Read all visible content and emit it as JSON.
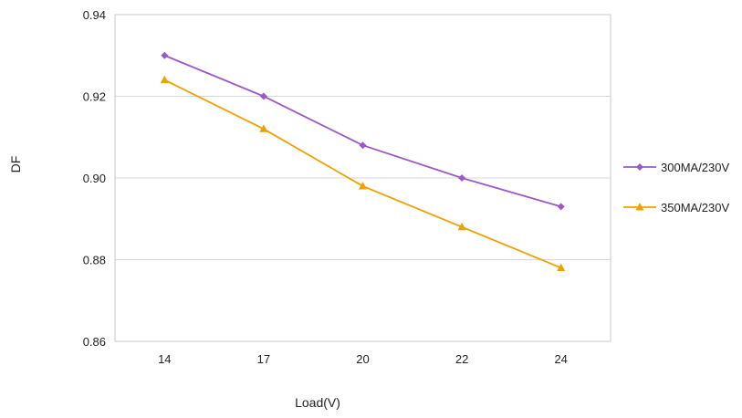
{
  "chart_data": {
    "type": "line",
    "categories": [
      "14",
      "17",
      "20",
      "22",
      "24"
    ],
    "series": [
      {
        "name": "300MA/230V",
        "values": [
          0.93,
          0.92,
          0.908,
          0.9,
          0.893
        ],
        "color": "#9b59c8",
        "marker": "diamond"
      },
      {
        "name": "350MA/230V",
        "values": [
          0.924,
          0.912,
          0.898,
          0.888,
          0.878
        ],
        "color": "#f0a000",
        "marker": "triangle"
      }
    ],
    "xlabel": "Load(V)",
    "ylabel": "DF",
    "ylim": [
      0.86,
      0.94
    ],
    "yticks": [
      "0.86",
      "0.88",
      "0.90",
      "0.92",
      "0.94"
    ],
    "grid": true,
    "legend_position": "right"
  }
}
